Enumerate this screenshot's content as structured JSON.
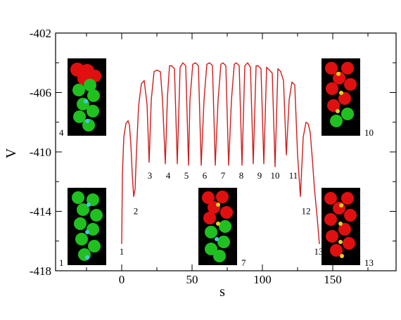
{
  "chart_data": {
    "type": "line",
    "title": "",
    "xlabel": "s",
    "ylabel": "V",
    "xlim": [
      -47,
      195
    ],
    "ylim": [
      -418,
      -402
    ],
    "xticks": [
      0,
      50,
      100,
      150
    ],
    "xtick_labels": [
      "0",
      "50",
      "100",
      "150"
    ],
    "yticks": [
      -418,
      -414,
      -410,
      -406,
      -402
    ],
    "ytick_labels": [
      "-418",
      "-414",
      "-410",
      "-406",
      "-402"
    ],
    "grid": false,
    "line_color": "#d01c1c",
    "series": [
      {
        "values_description_free": true,
        "x": [
          0,
          0.5,
          1.5,
          3,
          4.5,
          5.5,
          6.5,
          7.5,
          8.5,
          9.5,
          10.5,
          12,
          14,
          16,
          18,
          19.5,
          21,
          23,
          25,
          27.5,
          29,
          31,
          32.5,
          34,
          35.5,
          37.5,
          39.5,
          41.5,
          43.5,
          45.5,
          47.5,
          48.5,
          50.5,
          52.5,
          54.5,
          56.5,
          58.5,
          60.5,
          62.5,
          64.5,
          66.5,
          68.5,
          70.5,
          72,
          74,
          76,
          78,
          80,
          81.5,
          83.5,
          85.5,
          87.5,
          89.5,
          91.5,
          93.5,
          95.5,
          97,
          99,
          101,
          103,
          105,
          107,
          109,
          111,
          113,
          115,
          117,
          119,
          121,
          123,
          125,
          127,
          129,
          131,
          132.5,
          134,
          135.5,
          137,
          139,
          140.5
        ],
        "y": [
          -416.2,
          -411.5,
          -409,
          -408.1,
          -407.9,
          -408.2,
          -409.5,
          -411.5,
          -413,
          -412.5,
          -410,
          -406.9,
          -405.4,
          -405.2,
          -406.8,
          -410.7,
          -406.5,
          -404.6,
          -404.5,
          -404.6,
          -406.5,
          -410.8,
          -406.3,
          -404.2,
          -404.2,
          -404.4,
          -410.8,
          -404.3,
          -404.0,
          -404.2,
          -410.9,
          -406.5,
          -404.1,
          -404.0,
          -404.2,
          -410.9,
          -406.5,
          -404.1,
          -404.0,
          -404.2,
          -410.9,
          -406.5,
          -404.1,
          -404.0,
          -404.2,
          -410.9,
          -406.5,
          -404.1,
          -404.0,
          -404.2,
          -410.9,
          -404.2,
          -404.0,
          -404.3,
          -410.8,
          -404.2,
          -404.2,
          -404.4,
          -410.8,
          -404.3,
          -404.5,
          -404.7,
          -411.0,
          -404.4,
          -404.6,
          -405.2,
          -410.2,
          -406.5,
          -405.3,
          -405.5,
          -410.2,
          -413,
          -409,
          -408,
          -408.1,
          -408.7,
          -410.5,
          -412.5,
          -414.5,
          -416.2
        ],
        "name": ""
      }
    ],
    "annotations": [
      {
        "text": "1",
        "x": 0,
        "y": -416.9
      },
      {
        "text": "2",
        "x": 10,
        "y": -414.2
      },
      {
        "text": "3",
        "x": 20,
        "y": -411.8
      },
      {
        "text": "4",
        "x": 33,
        "y": -411.8
      },
      {
        "text": "5",
        "x": 46,
        "y": -411.8
      },
      {
        "text": "6",
        "x": 59,
        "y": -411.8
      },
      {
        "text": "7",
        "x": 72,
        "y": -411.8
      },
      {
        "text": "8",
        "x": 85,
        "y": -411.8
      },
      {
        "text": "9",
        "x": 98,
        "y": -411.8
      },
      {
        "text": "10",
        "x": 109,
        "y": -411.8
      },
      {
        "text": "11",
        "x": 122,
        "y": -411.8
      },
      {
        "text": "12",
        "x": 131,
        "y": -414.2
      },
      {
        "text": "13",
        "x": 140,
        "y": -416.9
      }
    ],
    "inset_labels": [
      "4",
      "10",
      "1",
      "7",
      "13"
    ]
  },
  "colors": {
    "line": "#d01c1c",
    "atom_red": "#e01010",
    "atom_green": "#20c020",
    "bond_cyan": "#40c8e8",
    "bond_yellow": "#e8d020",
    "inset_bg": "#000000"
  }
}
